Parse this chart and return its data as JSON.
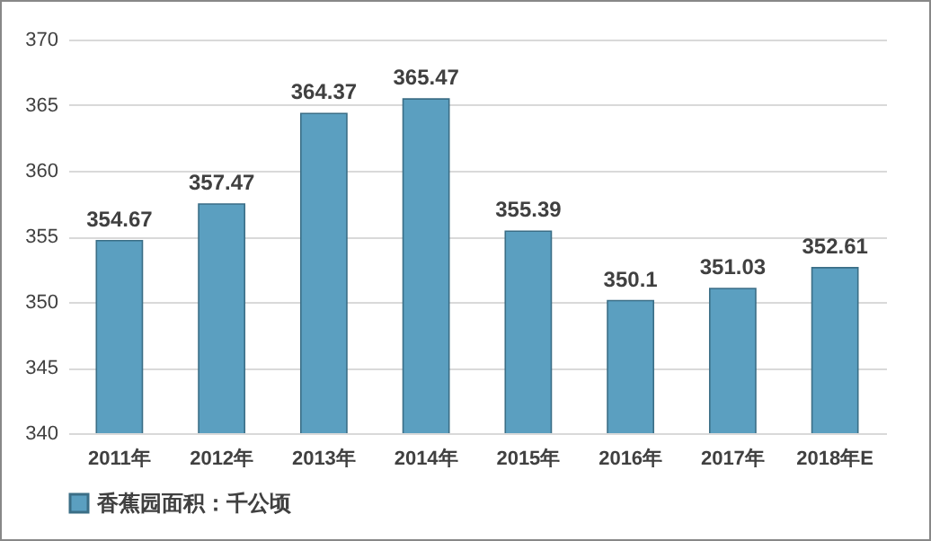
{
  "chart_data": {
    "type": "bar",
    "categories": [
      "2011年",
      "2012年",
      "2013年",
      "2014年",
      "2015年",
      "2016年",
      "2017年",
      "2018年E"
    ],
    "series": [
      {
        "name": "香蕉园面积：千公顷",
        "color": "#5b9fc0",
        "values": [
          354.67,
          357.47,
          364.37,
          365.47,
          355.39,
          350.1,
          351.03,
          352.61
        ]
      }
    ],
    "ylim": [
      340,
      370
    ],
    "yticks": [
      340,
      345,
      350,
      355,
      360,
      365,
      370
    ],
    "grid": "y",
    "legend": "bottom",
    "data_labels": true
  }
}
